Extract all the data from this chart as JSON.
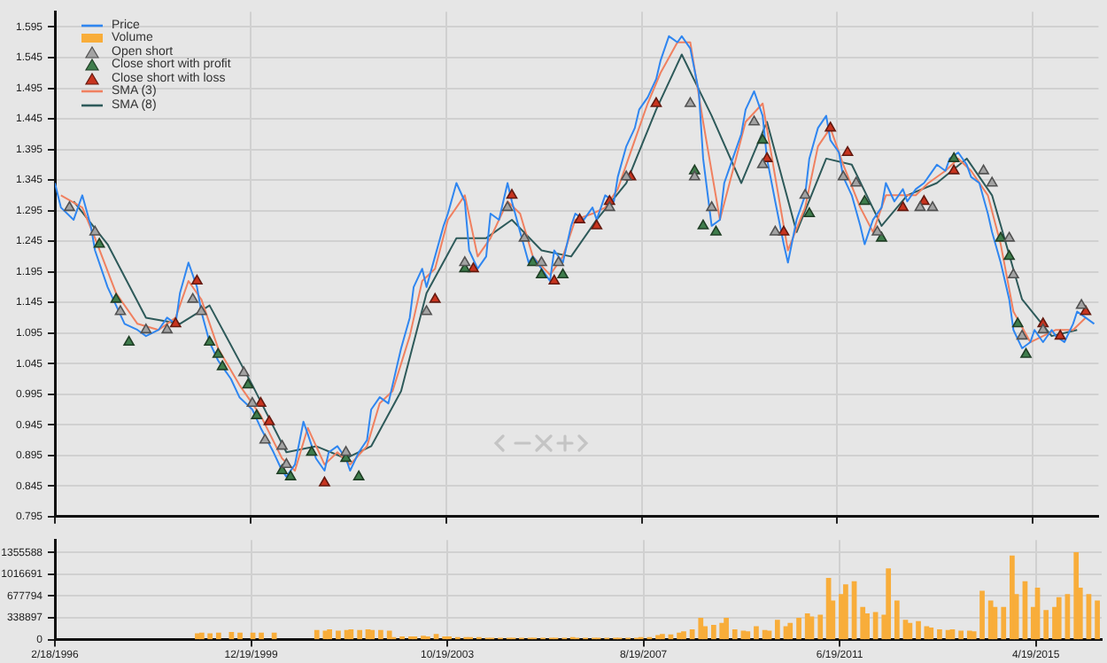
{
  "chart_data": [
    {
      "type": "line",
      "xlim": [
        "1996-02-18",
        "2016-08-01"
      ],
      "xticks": [
        {
          "value": "1996-02-18",
          "label": null
        },
        {
          "value": "1999-12-19",
          "label": null
        },
        {
          "value": "2003-10-19",
          "label": null
        },
        {
          "value": "2007-08-19",
          "label": null
        },
        {
          "value": "2011-06-19",
          "label": null
        },
        {
          "value": "2015-04-19",
          "label": null
        }
      ],
      "tick_labels": "y",
      "ylim": [
        0.795,
        1.62
      ],
      "yticks": [
        0.795,
        0.845,
        0.895,
        0.945,
        0.995,
        1.045,
        1.095,
        1.145,
        1.195,
        1.245,
        1.295,
        1.345,
        1.395,
        1.445,
        1.495,
        1.545,
        1.595
      ],
      "grid": true,
      "legend": "top left",
      "marker": "none",
      "series": [
        {
          "name": "Price",
          "color": "#2f86f0",
          "x": [
            "1996-02-18",
            "1996-04",
            "1996-07",
            "1996-09",
            "1996-11",
            "1996-12",
            "1997-03",
            "1997-05",
            "1997-07",
            "1997-10",
            "1997-12",
            "1998-03",
            "1998-05",
            "1998-07",
            "1998-08",
            "1998-10",
            "1998-12",
            "1999-01",
            "1999-03",
            "1999-05",
            "1999-08",
            "1999-10",
            "2000-01",
            "2000-03",
            "2000-06",
            "2000-08",
            "2000-09",
            "2000-11",
            "2001-01",
            "2001-02",
            "2001-04",
            "2001-06",
            "2001-07",
            "2001-09",
            "2001-11",
            "2001-12",
            "2002-02",
            "2002-04",
            "2002-05",
            "2002-07",
            "2002-09",
            "2002-10",
            "2002-12",
            "2003-02",
            "2003-03",
            "2003-05",
            "2003-06",
            "2003-08",
            "2003-10",
            "2003-11",
            "2004-01",
            "2004-03",
            "2004-04",
            "2004-06",
            "2004-08",
            "2004-09",
            "2004-11",
            "2005-01",
            "2005-02",
            "2005-04",
            "2005-06",
            "2005-07",
            "2005-09",
            "2005-11",
            "2005-12",
            "2006-02",
            "2006-04",
            "2006-05",
            "2006-07",
            "2006-09",
            "2006-10",
            "2006-12",
            "2007-02",
            "2007-03",
            "2007-05",
            "2007-07",
            "2007-08",
            "2007-10",
            "2007-12",
            "2008-01",
            "2008-03",
            "2008-05",
            "2008-06",
            "2008-08",
            "2008-10",
            "2008-11",
            "2009-01",
            "2009-03",
            "2009-04",
            "2009-06",
            "2009-08",
            "2009-09",
            "2009-11",
            "2010-01",
            "2010-02",
            "2010-04",
            "2010-06",
            "2010-07",
            "2010-09",
            "2010-11",
            "2010-12",
            "2011-02",
            "2011-04",
            "2011-05",
            "2011-07",
            "2011-08",
            "2011-10",
            "2011-12",
            "2012-01",
            "2012-03",
            "2012-05",
            "2012-06",
            "2012-08",
            "2012-10",
            "2012-11",
            "2013-01",
            "2013-03",
            "2013-04",
            "2013-06",
            "2013-08",
            "2013-09",
            "2013-11",
            "2014-01",
            "2014-02",
            "2014-04",
            "2014-06",
            "2014-07",
            "2014-09",
            "2014-11",
            "2014-12",
            "2015-02",
            "2015-04",
            "2015-05",
            "2015-07",
            "2015-09",
            "2015-10",
            "2015-12",
            "2016-02",
            "2016-03",
            "2016-05",
            "2016-07"
          ],
          "values": [
            1.34,
            1.3,
            1.28,
            1.32,
            1.27,
            1.23,
            1.17,
            1.14,
            1.11,
            1.1,
            1.09,
            1.1,
            1.12,
            1.11,
            1.16,
            1.21,
            1.17,
            1.13,
            1.08,
            1.05,
            1.02,
            0.99,
            0.97,
            0.94,
            0.9,
            0.87,
            0.86,
            0.88,
            0.95,
            0.93,
            0.89,
            0.87,
            0.9,
            0.91,
            0.89,
            0.87,
            0.9,
            0.92,
            0.97,
            0.99,
            0.98,
            1.01,
            1.07,
            1.12,
            1.17,
            1.2,
            1.17,
            1.22,
            1.27,
            1.29,
            1.34,
            1.31,
            1.23,
            1.2,
            1.22,
            1.29,
            1.28,
            1.34,
            1.31,
            1.26,
            1.21,
            1.22,
            1.2,
            1.18,
            1.23,
            1.21,
            1.27,
            1.29,
            1.28,
            1.3,
            1.28,
            1.32,
            1.31,
            1.35,
            1.4,
            1.43,
            1.46,
            1.48,
            1.51,
            1.54,
            1.58,
            1.57,
            1.58,
            1.56,
            1.49,
            1.38,
            1.27,
            1.28,
            1.34,
            1.38,
            1.42,
            1.46,
            1.49,
            1.45,
            1.38,
            1.31,
            1.24,
            1.21,
            1.28,
            1.32,
            1.38,
            1.43,
            1.45,
            1.41,
            1.39,
            1.35,
            1.32,
            1.27,
            1.24,
            1.28,
            1.3,
            1.34,
            1.31,
            1.33,
            1.31,
            1.33,
            1.34,
            1.35,
            1.37,
            1.36,
            1.38,
            1.39,
            1.37,
            1.35,
            1.34,
            1.29,
            1.26,
            1.21,
            1.15,
            1.1,
            1.07,
            1.08,
            1.1,
            1.08,
            1.1,
            1.09,
            1.08,
            1.11,
            1.13,
            1.12,
            1.11
          ]
        },
        {
          "name": "Open short",
          "type": "scatter",
          "marker": "triangle",
          "color": "#a3a3a3",
          "x": [
            "1996-06",
            "1996-12",
            "1997-06",
            "1997-12",
            "1998-05",
            "1998-11",
            "1999-01",
            "1999-11",
            "2000-01",
            "2000-04",
            "2000-08",
            "2000-09",
            "2001-11",
            "2003-06",
            "2004-03",
            "2005-01",
            "2005-05",
            "2005-09",
            "2006-01",
            "2007-01",
            "2007-05",
            "2008-08",
            "2008-09",
            "2009-01",
            "2009-11",
            "2010-01",
            "2010-04",
            "2010-11",
            "2011-08",
            "2011-11",
            "2012-04",
            "2013-02",
            "2013-05",
            "2014-05",
            "2014-07",
            "2014-11",
            "2014-12",
            "2015-02",
            "2015-07",
            "2016-04"
          ],
          "values": [
            1.3,
            1.26,
            1.13,
            1.1,
            1.1,
            1.15,
            1.13,
            1.03,
            0.98,
            0.92,
            0.91,
            0.88,
            0.9,
            1.13,
            1.21,
            1.3,
            1.25,
            1.21,
            1.21,
            1.3,
            1.35,
            1.47,
            1.35,
            1.3,
            1.44,
            1.37,
            1.26,
            1.32,
            1.35,
            1.34,
            1.26,
            1.3,
            1.3,
            1.36,
            1.34,
            1.25,
            1.19,
            1.09,
            1.1,
            1.14
          ]
        },
        {
          "name": "Close short with profit",
          "type": "scatter",
          "marker": "triangle",
          "color": "#3f7d4c",
          "x": [
            "1997-01",
            "1997-05",
            "1997-08",
            "1999-03",
            "1999-05",
            "1999-06",
            "1999-12",
            "2000-02",
            "2000-08",
            "2000-10",
            "2001-03",
            "2001-11",
            "2002-02",
            "2004-03",
            "2005-07",
            "2005-09",
            "2006-02",
            "2008-09",
            "2008-11",
            "2009-02",
            "2010-01",
            "2010-12",
            "2012-01",
            "2012-05",
            "2013-10",
            "2014-09",
            "2014-11",
            "2015-01",
            "2015-03"
          ],
          "values": [
            1.24,
            1.15,
            1.08,
            1.08,
            1.06,
            1.04,
            1.01,
            0.96,
            0.87,
            0.86,
            0.9,
            0.89,
            0.86,
            1.2,
            1.21,
            1.19,
            1.19,
            1.36,
            1.27,
            1.26,
            1.41,
            1.29,
            1.31,
            1.25,
            1.38,
            1.25,
            1.22,
            1.11,
            1.06
          ]
        },
        {
          "name": "Close short with loss",
          "type": "scatter",
          "marker": "triangle",
          "color": "#c8341f",
          "x": [
            "1998-07",
            "1998-12",
            "2000-03",
            "2000-05",
            "2001-06",
            "2003-08",
            "2004-05",
            "2005-02",
            "2005-12",
            "2006-06",
            "2006-10",
            "2007-01",
            "2007-06",
            "2007-12",
            "2010-02",
            "2010-06",
            "2011-05",
            "2011-09",
            "2012-10",
            "2013-03",
            "2013-10",
            "2015-07",
            "2015-11",
            "2016-05"
          ],
          "values": [
            1.11,
            1.18,
            0.98,
            0.95,
            0.85,
            1.15,
            1.2,
            1.32,
            1.18,
            1.28,
            1.27,
            1.31,
            1.35,
            1.47,
            1.38,
            1.26,
            1.43,
            1.39,
            1.3,
            1.31,
            1.36,
            1.11,
            1.09,
            1.13
          ]
        },
        {
          "name": "SMA (3)",
          "color": "#f08060",
          "x": [
            "1996-04",
            "1996-09",
            "1996-12",
            "1997-05",
            "1997-10",
            "1998-03",
            "1998-07",
            "1998-10",
            "1999-01",
            "1999-05",
            "1999-10",
            "2000-03",
            "2000-08",
            "2000-11",
            "2001-02",
            "2001-06",
            "2001-09",
            "2001-12",
            "2002-04",
            "2002-07",
            "2002-10",
            "2003-02",
            "2003-05",
            "2003-08",
            "2003-11",
            "2004-03",
            "2004-06",
            "2004-09",
            "2005-01",
            "2005-04",
            "2005-07",
            "2005-11",
            "2006-02",
            "2006-05",
            "2006-09",
            "2006-12",
            "2007-03",
            "2007-07",
            "2007-10",
            "2008-01",
            "2008-05",
            "2008-08",
            "2008-11",
            "2009-03",
            "2009-06",
            "2009-09",
            "2010-01",
            "2010-04",
            "2010-07",
            "2010-11",
            "2011-02",
            "2011-05",
            "2011-08",
            "2011-12",
            "2012-03",
            "2012-06",
            "2012-10",
            "2013-01",
            "2013-04",
            "2013-08",
            "2013-11",
            "2014-02",
            "2014-06",
            "2014-09",
            "2014-12",
            "2015-04",
            "2015-07",
            "2015-10",
            "2016-02",
            "2016-05"
          ],
          "values": [
            1.32,
            1.3,
            1.25,
            1.16,
            1.11,
            1.1,
            1.12,
            1.18,
            1.15,
            1.07,
            1.01,
            0.96,
            0.89,
            0.87,
            0.94,
            0.88,
            0.9,
            0.88,
            0.91,
            0.98,
            1.0,
            1.09,
            1.18,
            1.2,
            1.28,
            1.32,
            1.22,
            1.25,
            1.31,
            1.29,
            1.22,
            1.19,
            1.22,
            1.28,
            1.29,
            1.3,
            1.33,
            1.41,
            1.47,
            1.52,
            1.57,
            1.57,
            1.44,
            1.28,
            1.36,
            1.44,
            1.47,
            1.35,
            1.23,
            1.3,
            1.4,
            1.43,
            1.37,
            1.3,
            1.26,
            1.32,
            1.32,
            1.32,
            1.34,
            1.36,
            1.38,
            1.36,
            1.32,
            1.24,
            1.13,
            1.08,
            1.09,
            1.1,
            1.1,
            1.12
          ]
        },
        {
          "name": "SMA (8)",
          "color": "#2e5a5a",
          "x": [
            "1996-07",
            "1997-03",
            "1997-12",
            "1998-08",
            "1999-03",
            "2000-01",
            "2000-09",
            "2001-04",
            "2001-11",
            "2002-05",
            "2002-12",
            "2003-06",
            "2004-01",
            "2004-08",
            "2005-02",
            "2005-09",
            "2006-04",
            "2006-10",
            "2007-05",
            "2007-12",
            "2008-06",
            "2009-01",
            "2009-08",
            "2010-02",
            "2010-09",
            "2011-04",
            "2011-10",
            "2012-05",
            "2012-11",
            "2013-06",
            "2014-01",
            "2014-07",
            "2015-02",
            "2015-09",
            "2016-03"
          ],
          "values": [
            1.31,
            1.24,
            1.12,
            1.11,
            1.14,
            1.01,
            0.9,
            0.91,
            0.89,
            0.91,
            1.0,
            1.16,
            1.25,
            1.25,
            1.28,
            1.23,
            1.22,
            1.28,
            1.34,
            1.46,
            1.55,
            1.45,
            1.34,
            1.44,
            1.26,
            1.38,
            1.37,
            1.27,
            1.32,
            1.34,
            1.38,
            1.32,
            1.15,
            1.09,
            1.1
          ]
        }
      ]
    },
    {
      "type": "bar",
      "xlim": [
        "1996-02-18",
        "2016-08-01"
      ],
      "xticks": [
        {
          "value": "1996-02-18",
          "label": "2/18/1996"
        },
        {
          "value": "1999-12-19",
          "label": "12/19/1999"
        },
        {
          "value": "2003-10-19",
          "label": "10/19/2003"
        },
        {
          "value": "2007-08-19",
          "label": "8/19/2007"
        },
        {
          "value": "2011-06-19",
          "label": "6/19/2011"
        },
        {
          "value": "2015-04-19",
          "label": "4/19/2015"
        }
      ],
      "ylim": [
        0,
        1550000
      ],
      "yticks": [
        0,
        338897,
        677794,
        1016691,
        1355588
      ],
      "grid": true,
      "series": [
        {
          "name": "Volume",
          "color": "#f8ad3a",
          "x": [
            "1998-12",
            "1999-01",
            "1999-03",
            "1999-05",
            "1999-08",
            "1999-10",
            "2000-01",
            "2000-03",
            "2000-06",
            "2001-04",
            "2001-06",
            "2001-07",
            "2001-09",
            "2001-11",
            "2001-12",
            "2002-02",
            "2002-04",
            "2002-05",
            "2002-07",
            "2002-09",
            "2002-10",
            "2002-12",
            "2003-02",
            "2003-03",
            "2003-05",
            "2003-06",
            "2003-08",
            "2003-10",
            "2003-11",
            "2004-01",
            "2004-03",
            "2004-04",
            "2004-06",
            "2004-08",
            "2004-09",
            "2004-11",
            "2005-01",
            "2005-02",
            "2005-04",
            "2005-06",
            "2005-07",
            "2005-09",
            "2005-11",
            "2005-12",
            "2006-02",
            "2006-04",
            "2006-05",
            "2006-07",
            "2006-09",
            "2006-10",
            "2006-12",
            "2007-02",
            "2007-03",
            "2007-05",
            "2007-07",
            "2007-08",
            "2007-10",
            "2007-12",
            "2008-01",
            "2008-03",
            "2008-05",
            "2008-06",
            "2008-08",
            "2008-10",
            "2008-11",
            "2009-01",
            "2009-03",
            "2009-04",
            "2009-06",
            "2009-08",
            "2009-09",
            "2009-11",
            "2010-01",
            "2010-02",
            "2010-04",
            "2010-06",
            "2010-07",
            "2010-09",
            "2010-11",
            "2010-12",
            "2011-02",
            "2011-04",
            "2011-05",
            "2011-07",
            "2011-08",
            "2011-10",
            "2011-12",
            "2012-01",
            "2012-03",
            "2012-05",
            "2012-06",
            "2012-08",
            "2012-10",
            "2012-11",
            "2013-01",
            "2013-03",
            "2013-04",
            "2013-06",
            "2013-08",
            "2013-09",
            "2013-11",
            "2014-01",
            "2014-02",
            "2014-04",
            "2014-06",
            "2014-07",
            "2014-09",
            "2014-11",
            "2014-12",
            "2015-02",
            "2015-04",
            "2015-05",
            "2015-07",
            "2015-09",
            "2015-10",
            "2015-12",
            "2016-02",
            "2016-03",
            "2016-05",
            "2016-07"
          ],
          "values": [
            90000,
            100000,
            90000,
            100000,
            110000,
            100000,
            100000,
            100000,
            100000,
            140000,
            130000,
            150000,
            130000,
            140000,
            150000,
            140000,
            150000,
            140000,
            140000,
            130000,
            30000,
            40000,
            40000,
            40000,
            50000,
            40000,
            80000,
            40000,
            40000,
            30000,
            30000,
            30000,
            30000,
            20000,
            20000,
            20000,
            20000,
            20000,
            20000,
            20000,
            20000,
            20000,
            20000,
            20000,
            20000,
            30000,
            20000,
            20000,
            20000,
            20000,
            20000,
            20000,
            20000,
            20000,
            20000,
            30000,
            30000,
            60000,
            80000,
            70000,
            100000,
            120000,
            150000,
            330000,
            200000,
            220000,
            250000,
            330000,
            150000,
            130000,
            120000,
            200000,
            140000,
            130000,
            300000,
            200000,
            250000,
            330000,
            400000,
            350000,
            380000,
            950000,
            600000,
            700000,
            850000,
            900000,
            500000,
            400000,
            420000,
            380000,
            1100000,
            600000,
            300000,
            250000,
            280000,
            200000,
            180000,
            150000,
            140000,
            150000,
            130000,
            130000,
            120000,
            750000,
            600000,
            500000,
            500000,
            1300000,
            700000,
            900000,
            500000,
            800000,
            450000,
            500000,
            650000,
            700000,
            1350000,
            800000,
            700000,
            600000
          ]
        }
      ]
    }
  ]
}
